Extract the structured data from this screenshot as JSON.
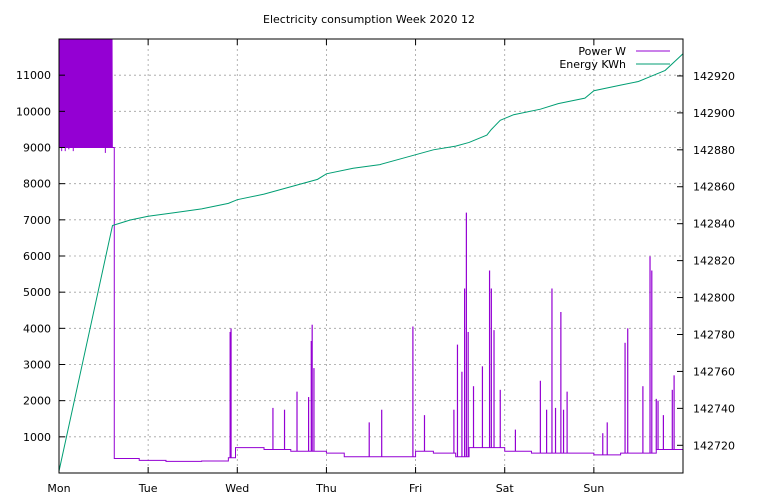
{
  "chart_data": {
    "type": "line",
    "title": "Electricity consumption Week 2020 12",
    "x_categories": [
      "Mon",
      "Tue",
      "Wed",
      "Thu",
      "Fri",
      "Sat",
      "Sun"
    ],
    "x_range_days": [
      0,
      7
    ],
    "y_left": {
      "range": [
        0,
        12000
      ],
      "ticks": [
        1000,
        2000,
        3000,
        4000,
        5000,
        6000,
        7000,
        8000,
        9000,
        10000,
        11000
      ]
    },
    "y_right": {
      "range": [
        142705,
        142940
      ],
      "ticks": [
        142720,
        142740,
        142760,
        142780,
        142800,
        142820,
        142840,
        142860,
        142880,
        142900,
        142920
      ]
    },
    "grid": true,
    "legend_position": "top-right",
    "series": [
      {
        "name": "Power W",
        "axis": "left",
        "color": "#9400d3",
        "base_points": [
          [
            0.0,
            9000
          ],
          [
            0.6,
            9000
          ],
          [
            0.62,
            400
          ],
          [
            0.85,
            400
          ],
          [
            0.9,
            350
          ],
          [
            1.2,
            320
          ],
          [
            1.6,
            330
          ],
          [
            1.9,
            420
          ],
          [
            1.98,
            700
          ],
          [
            2.3,
            650
          ],
          [
            2.6,
            600
          ],
          [
            3.0,
            550
          ],
          [
            3.2,
            450
          ],
          [
            3.6,
            450
          ],
          [
            4.0,
            600
          ],
          [
            4.2,
            550
          ],
          [
            4.45,
            450
          ],
          [
            4.6,
            700
          ],
          [
            5.0,
            600
          ],
          [
            5.3,
            550
          ],
          [
            5.6,
            550
          ],
          [
            6.0,
            500
          ],
          [
            6.3,
            550
          ],
          [
            6.7,
            650
          ],
          [
            7.0,
            650
          ]
        ],
        "spikes": [
          [
            1.92,
            3900
          ],
          [
            1.93,
            4000
          ],
          [
            2.4,
            1800
          ],
          [
            2.53,
            1750
          ],
          [
            2.67,
            2250
          ],
          [
            2.8,
            2100
          ],
          [
            2.83,
            3650
          ],
          [
            2.84,
            4100
          ],
          [
            2.86,
            2900
          ],
          [
            3.48,
            1400
          ],
          [
            3.62,
            1750
          ],
          [
            3.97,
            4050
          ],
          [
            4.1,
            1600
          ],
          [
            4.43,
            1750
          ],
          [
            4.47,
            3550
          ],
          [
            4.52,
            2800
          ],
          [
            4.55,
            5100
          ],
          [
            4.57,
            7200
          ],
          [
            4.59,
            3900
          ],
          [
            4.65,
            2400
          ],
          [
            4.75,
            2950
          ],
          [
            4.83,
            5600
          ],
          [
            4.85,
            5100
          ],
          [
            4.88,
            3950
          ],
          [
            4.95,
            2300
          ],
          [
            5.12,
            1200
          ],
          [
            5.4,
            2550
          ],
          [
            5.47,
            1750
          ],
          [
            5.53,
            5100
          ],
          [
            5.57,
            1800
          ],
          [
            5.63,
            4450
          ],
          [
            5.66,
            1750
          ],
          [
            5.7,
            2250
          ],
          [
            6.1,
            1100
          ],
          [
            6.15,
            1400
          ],
          [
            6.35,
            3600
          ],
          [
            6.38,
            4000
          ],
          [
            6.55,
            2400
          ],
          [
            6.63,
            5990
          ],
          [
            6.65,
            5600
          ],
          [
            6.7,
            2050
          ],
          [
            6.72,
            2000
          ],
          [
            6.78,
            1600
          ],
          [
            6.88,
            2300
          ],
          [
            6.9,
            2700
          ]
        ]
      },
      {
        "name": "Energy KWh",
        "axis": "right",
        "color": "#009e73",
        "points": [
          [
            0.0,
            142706
          ],
          [
            0.6,
            142839
          ],
          [
            0.8,
            142842
          ],
          [
            1.0,
            142844
          ],
          [
            1.3,
            142846
          ],
          [
            1.6,
            142848
          ],
          [
            1.9,
            142851
          ],
          [
            2.0,
            142853
          ],
          [
            2.3,
            142856
          ],
          [
            2.6,
            142860
          ],
          [
            2.9,
            142864
          ],
          [
            3.0,
            142867
          ],
          [
            3.3,
            142870
          ],
          [
            3.6,
            142872
          ],
          [
            3.9,
            142876
          ],
          [
            4.2,
            142880
          ],
          [
            4.45,
            142882
          ],
          [
            4.6,
            142884
          ],
          [
            4.8,
            142888
          ],
          [
            4.85,
            142891
          ],
          [
            4.95,
            142896
          ],
          [
            5.1,
            142899
          ],
          [
            5.4,
            142902
          ],
          [
            5.6,
            142905
          ],
          [
            5.9,
            142908
          ],
          [
            6.0,
            142912
          ],
          [
            6.3,
            142915
          ],
          [
            6.5,
            142917
          ],
          [
            6.6,
            142919
          ],
          [
            6.8,
            142923
          ],
          [
            7.0,
            142932
          ]
        ]
      }
    ]
  }
}
